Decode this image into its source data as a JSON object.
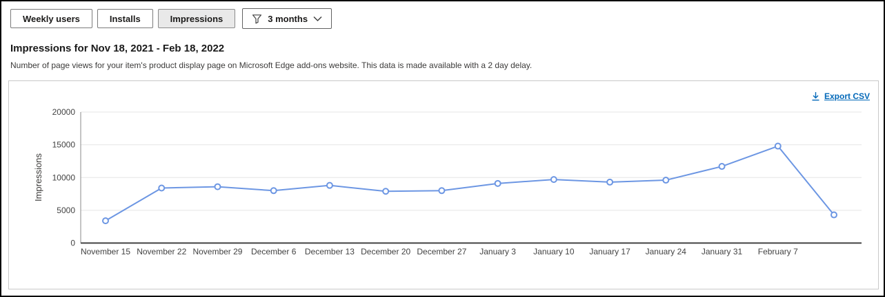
{
  "toolbar": {
    "buttons": [
      {
        "label": "Weekly users",
        "selected": false
      },
      {
        "label": "Installs",
        "selected": false
      },
      {
        "label": "Impressions",
        "selected": true
      }
    ],
    "filter": {
      "label": "3 months",
      "icon": "filter-icon",
      "chevron": "chevron-down-icon"
    }
  },
  "header": {
    "title": "Impressions for Nov 18, 2021 - Feb 18, 2022",
    "description": "Number of page views for your item's product display page on Microsoft Edge add-ons website. This data is made available with a 2 day delay."
  },
  "card": {
    "export_label": "Export CSV",
    "export_icon": "download-icon"
  },
  "chart_data": {
    "type": "line",
    "title": "",
    "xlabel": "",
    "ylabel": "Impressions",
    "ylim": [
      0,
      20000
    ],
    "yticks": [
      0,
      5000,
      10000,
      15000,
      20000
    ],
    "categories": [
      "November 15",
      "November 22",
      "November 29",
      "December 6",
      "December 13",
      "December 20",
      "December 27",
      "January 3",
      "January 10",
      "January 17",
      "January 24",
      "January 31",
      "February 7",
      ""
    ],
    "values": [
      3400,
      8400,
      8600,
      8000,
      8800,
      7900,
      8000,
      9100,
      9700,
      9300,
      9600,
      11700,
      14800,
      4300
    ],
    "grid": true,
    "legend": "none",
    "line_color": "#6C96E3",
    "marker": "open-circle"
  },
  "colors": {
    "link_accent": "#0067b8",
    "selected_button_bg": "#e9e9e9",
    "gridline": "#e5e5e5",
    "axis": "#424242"
  }
}
